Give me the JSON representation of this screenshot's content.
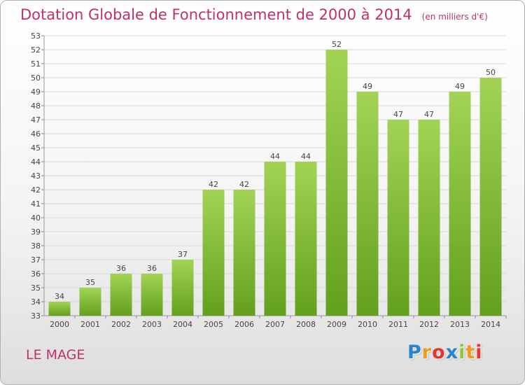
{
  "title": "Dotation Globale de Fonctionnement de 2000 à 2014",
  "subtitle": "(en milliers d'€)",
  "commune": "LE MAGE",
  "brand": {
    "letters": [
      "P",
      "r",
      "o",
      "x",
      "i",
      "t",
      "i"
    ],
    "colors": [
      "#2a83c9",
      "#f39a1c",
      "#e6362b",
      "#2a83c9",
      "#8cc63e",
      "#f39a1c",
      "#e6362b"
    ]
  },
  "colors": {
    "title": "#c0306a",
    "bar_light": "#a2d357",
    "bar_dark": "#63a01e",
    "grid": "#d8d8d8"
  },
  "chart_data": {
    "type": "bar",
    "categories": [
      "2000",
      "2001",
      "2002",
      "2003",
      "2004",
      "2005",
      "2006",
      "2007",
      "2008",
      "2009",
      "2010",
      "2011",
      "2012",
      "2013",
      "2014"
    ],
    "values": [
      34,
      35,
      36,
      36,
      37,
      42,
      42,
      44,
      44,
      52,
      49,
      47,
      47,
      49,
      50
    ],
    "title": "Dotation Globale de Fonctionnement de 2000 à 2014",
    "xlabel": "",
    "ylabel": "",
    "ylim": [
      33,
      53
    ],
    "yticks": [
      33,
      34,
      35,
      36,
      37,
      38,
      39,
      40,
      41,
      42,
      43,
      44,
      45,
      46,
      47,
      48,
      49,
      50,
      51,
      52,
      53
    ],
    "grid": true,
    "data_labels": true
  }
}
